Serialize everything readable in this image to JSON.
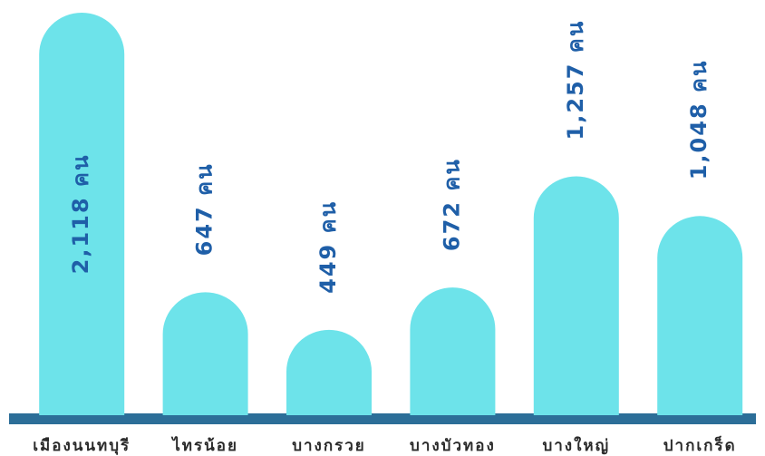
{
  "chart_data": {
    "type": "bar",
    "categories": [
      "เมืองนนทบุรี",
      "ไทรน้อย",
      "บางกรวย",
      "บางบัวทอง",
      "บางใหญ่",
      "ปากเกร็ด"
    ],
    "values": [
      2118,
      647,
      449,
      672,
      1257,
      1048
    ],
    "value_labels": [
      "2,118 คน",
      "647 คน",
      "449 คน",
      "672 คน",
      "1,257 คน",
      "1,048 คน"
    ],
    "color": "#6de3ea",
    "baseline_color": "#2c6e98",
    "label_color": "#1f5fa8"
  }
}
